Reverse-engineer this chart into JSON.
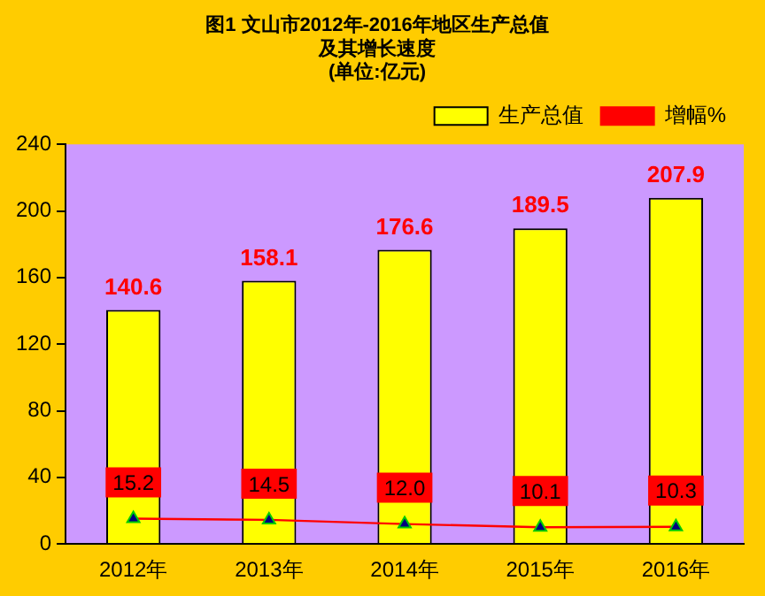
{
  "chart_data": {
    "type": "bar",
    "title": [
      "图1 文山市2012年-2016年地区生产总值",
      "及其增长速度",
      "(单位:亿元)"
    ],
    "categories": [
      "2012年",
      "2013年",
      "2014年",
      "2015年",
      "2016年"
    ],
    "series": [
      {
        "name": "生产总值",
        "color": "#ffff00",
        "values": [
          140.6,
          158.1,
          176.6,
          189.5,
          207.9
        ],
        "value_labels": [
          "140.6",
          "158.1",
          "176.6",
          "189.5",
          "207.9"
        ]
      },
      {
        "name": "增幅%",
        "type": "line",
        "color": "#ff0000",
        "marker": "triangle",
        "values": [
          15.2,
          14.5,
          12.0,
          10.1,
          10.3
        ],
        "value_labels": [
          "15.2",
          "14.5",
          "12.0",
          "10.1",
          "10.3"
        ]
      }
    ],
    "ylim": [
      0,
      240
    ],
    "yticks": [
      0,
      40,
      80,
      120,
      160,
      200,
      240
    ],
    "grid": false,
    "legend": "top right"
  }
}
